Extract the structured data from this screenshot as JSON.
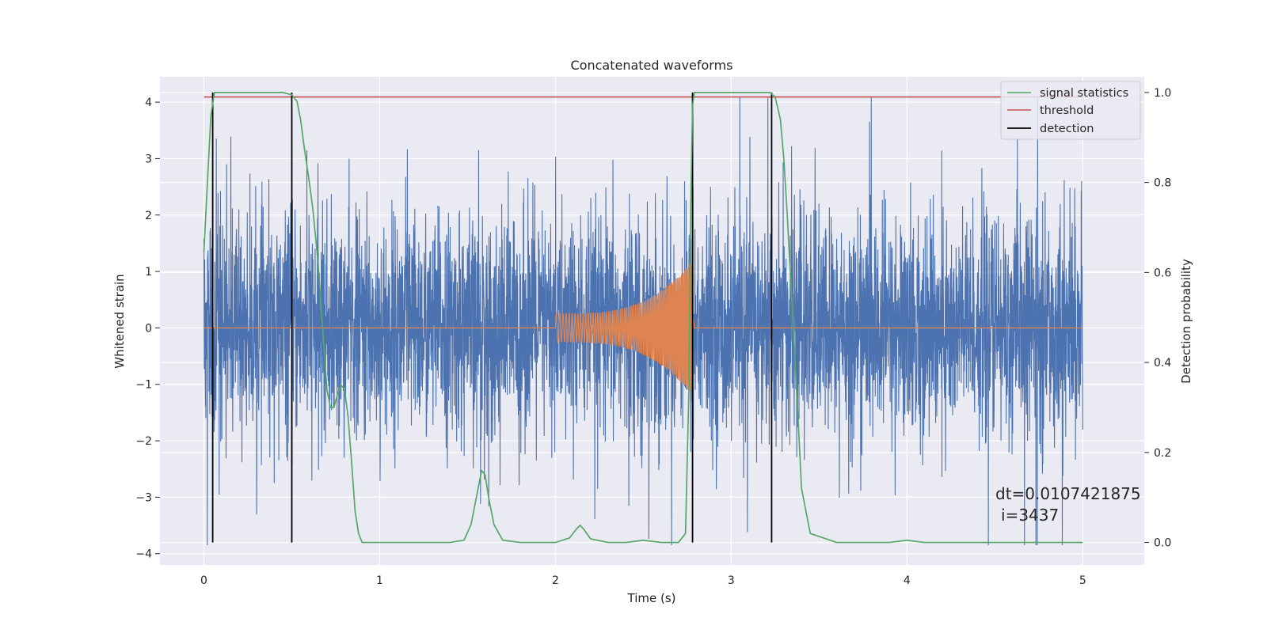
{
  "chart_data": {
    "type": "line",
    "title": "Concatenated waveforms",
    "xlabel": "Time (s)",
    "ylabel_left": "Whitened strain",
    "ylabel_right": "Detection probability",
    "xlim": [
      -0.25,
      5.35
    ],
    "ylim_left": [
      -4.2,
      4.45
    ],
    "ylim_right": [
      -0.05,
      1.035
    ],
    "x_ticks": [
      0,
      1,
      2,
      3,
      4,
      5
    ],
    "x_tick_labels": [
      "0",
      "1",
      "2",
      "3",
      "4",
      "5"
    ],
    "y_left_ticks": [
      4,
      3,
      2,
      1,
      0,
      -1,
      -2,
      -3,
      -4
    ],
    "y_left_tick_labels": [
      "4",
      "3",
      "2",
      "1",
      "0",
      "−1",
      "−2",
      "−3",
      "−4"
    ],
    "y_right_ticks": [
      1.0,
      0.8,
      0.6,
      0.4,
      0.2,
      0.0
    ],
    "y_right_tick_labels": [
      "1.0",
      "0.8",
      "0.6",
      "0.4",
      "0.2",
      "0.0"
    ],
    "grid": true,
    "legend_position": "top-right",
    "series": [
      {
        "name": "",
        "axis": "left",
        "kind": "noise",
        "color": "#4c72b0",
        "x_range": [
          0,
          5
        ],
        "typical_envelope": 1.0,
        "max": 4.1,
        "min": -3.85
      },
      {
        "name": "",
        "axis": "left",
        "kind": "chirp",
        "color": "#dd8452",
        "baseline": 0,
        "chirp_start": 2.0,
        "merger": 2.78,
        "start_amplitude": 0.25,
        "peak_amplitude": 1.2
      },
      {
        "name": "signal statistics",
        "axis": "right",
        "color": "#55a868",
        "x": [
          0.0,
          0.02,
          0.04,
          0.06,
          0.08,
          0.1,
          0.2,
          0.3,
          0.4,
          0.45,
          0.5,
          0.53,
          0.55,
          0.57,
          0.6,
          0.62,
          0.65,
          0.68,
          0.7,
          0.72,
          0.74,
          0.76,
          0.78,
          0.8,
          0.82,
          0.84,
          0.86,
          0.88,
          0.9,
          1.0,
          1.2,
          1.4,
          1.48,
          1.52,
          1.55,
          1.58,
          1.6,
          1.62,
          1.65,
          1.7,
          1.8,
          1.9,
          2.0,
          2.08,
          2.12,
          2.14,
          2.16,
          2.2,
          2.3,
          2.4,
          2.5,
          2.6,
          2.7,
          2.74,
          2.76,
          2.77,
          2.78,
          2.79,
          2.8,
          2.9,
          3.0,
          3.1,
          3.2,
          3.22,
          3.25,
          3.28,
          3.3,
          3.32,
          3.35,
          3.38,
          3.4,
          3.45,
          3.6,
          3.8,
          3.9,
          4.0,
          4.1,
          4.3,
          4.6,
          5.0
        ],
        "values": [
          0.645,
          0.8,
          0.95,
          1.0,
          1.0,
          1.0,
          1.0,
          1.0,
          1.0,
          1.0,
          0.995,
          0.98,
          0.94,
          0.88,
          0.8,
          0.74,
          0.62,
          0.45,
          0.34,
          0.3,
          0.3,
          0.33,
          0.35,
          0.34,
          0.28,
          0.18,
          0.07,
          0.02,
          0.0,
          0.0,
          0.0,
          0.0,
          0.005,
          0.04,
          0.1,
          0.16,
          0.15,
          0.1,
          0.04,
          0.005,
          0.0,
          0.0,
          0.0,
          0.01,
          0.03,
          0.038,
          0.03,
          0.008,
          0.0,
          0.0,
          0.005,
          0.0,
          0.0,
          0.02,
          0.35,
          0.75,
          0.97,
          1.0,
          1.0,
          1.0,
          1.0,
          1.0,
          1.0,
          1.0,
          0.99,
          0.94,
          0.85,
          0.72,
          0.5,
          0.28,
          0.12,
          0.02,
          0.0,
          0.0,
          0.0,
          0.005,
          0.0,
          0.0,
          0.0,
          0.0
        ]
      },
      {
        "name": "threshold",
        "axis": "right",
        "color": "#c44e52",
        "x": [
          0,
          5
        ],
        "values": [
          0.99,
          0.99
        ]
      },
      {
        "name": "detection",
        "axis": "right",
        "color": "#000000",
        "kind": "vlines",
        "x": [
          0.05,
          0.5,
          2.78,
          3.23
        ],
        "ymin": 0.0,
        "ymax": 1.0
      }
    ],
    "annotation": {
      "line1": "dt=0.0107421875",
      "line2": "i=3437",
      "x": 4.5,
      "y": -3.0
    }
  }
}
